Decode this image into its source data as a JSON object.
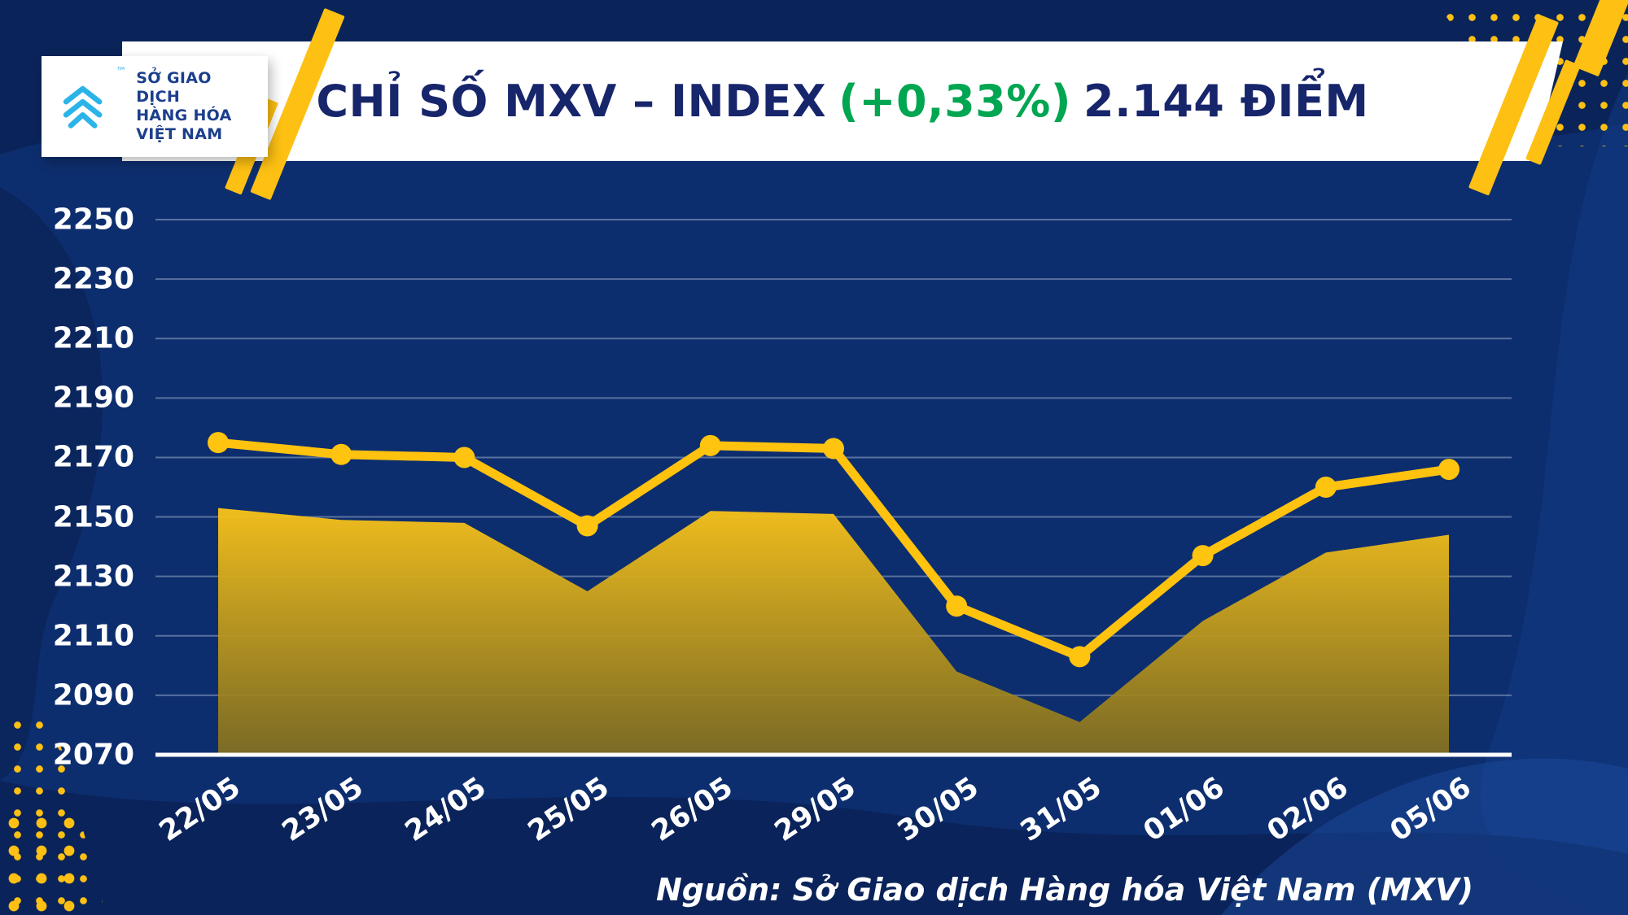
{
  "theme": {
    "background": "#0d2e6e",
    "deep_navy": "#0a2155",
    "light_blue": "#123a85",
    "accent_yellow": "#fdc013",
    "green": "#00a651",
    "title_navy": "#17256b",
    "logo_cyan": "#2bb4e8",
    "logo_text_navy": "#1c3f8c"
  },
  "logo": {
    "lines": [
      "SỞ GIAO DỊCH",
      "HÀNG HÓA",
      "VIỆT NAM"
    ],
    "trademark": "™"
  },
  "header": {
    "title_prefix": "CHỈ SỐ MXV – INDEX",
    "title_change": "(+0,33%)",
    "title_suffix": "2.144 ĐIỂM"
  },
  "source_caption": "Nguồn: Sở Giao dịch Hàng hóa Việt Nam (MXV)",
  "chart_data": {
    "type": "line",
    "title": "Chỉ số MXV – Index (+0,33%) 2.144 điểm",
    "x": [
      "22/05",
      "23/05",
      "24/05",
      "25/05",
      "26/05",
      "29/05",
      "30/05",
      "31/05",
      "01/06",
      "02/06",
      "05/06"
    ],
    "series": [
      {
        "name": "MXV-Index",
        "values": [
          2153,
          2149,
          2148,
          2125,
          2152,
          2151,
          2098,
          2081,
          2115,
          2138,
          2144
        ]
      }
    ],
    "ylim": [
      2070,
      2250
    ],
    "yticks": [
      2250,
      2230,
      2210,
      2190,
      2170,
      2150,
      2130,
      2110,
      2090,
      2070
    ],
    "grid": true,
    "legend": false,
    "style": {
      "line_color": "#ffc20e",
      "marker_color": "#ffc40f",
      "area_top_color": "#f6c11a",
      "area_bottom_color": "#86711d",
      "decorative_line_offset_points": 22,
      "axis_color": "#ffffff",
      "grid_color": "rgba(214,224,240,0.38)",
      "label_color": "#ffffff"
    }
  }
}
